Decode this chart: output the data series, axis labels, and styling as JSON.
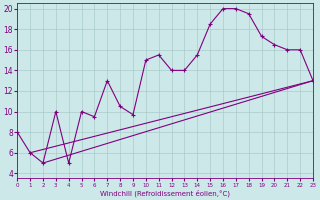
{
  "xlabel": "Windchill (Refroidissement éolien,°C)",
  "bg_color": "#cce8e8",
  "line_color": "#800080",
  "grid_color": "#aacaca",
  "x_main": [
    0,
    1,
    2,
    3,
    4,
    5,
    6,
    7,
    8,
    9,
    10,
    11,
    12,
    13,
    14,
    15,
    16,
    17,
    18,
    19,
    20,
    21,
    22,
    23
  ],
  "y_main": [
    8,
    6,
    5,
    10,
    5,
    10,
    9.5,
    13,
    10.5,
    9.7,
    15,
    15.5,
    14,
    14,
    15.5,
    18.5,
    20,
    20,
    19.5,
    17.3,
    16.5,
    16,
    16,
    13
  ],
  "line1_x": [
    1,
    23
  ],
  "line1_y": [
    6.0,
    13.0
  ],
  "line2_x": [
    2,
    23
  ],
  "line2_y": [
    5.0,
    13.0
  ],
  "xlim": [
    0,
    23
  ],
  "ylim": [
    3.5,
    20.5
  ],
  "yticks": [
    4,
    6,
    8,
    10,
    12,
    14,
    16,
    18,
    20
  ],
  "xticks": [
    0,
    1,
    2,
    3,
    4,
    5,
    6,
    7,
    8,
    9,
    10,
    11,
    12,
    13,
    14,
    15,
    16,
    17,
    18,
    19,
    20,
    21,
    22,
    23
  ]
}
